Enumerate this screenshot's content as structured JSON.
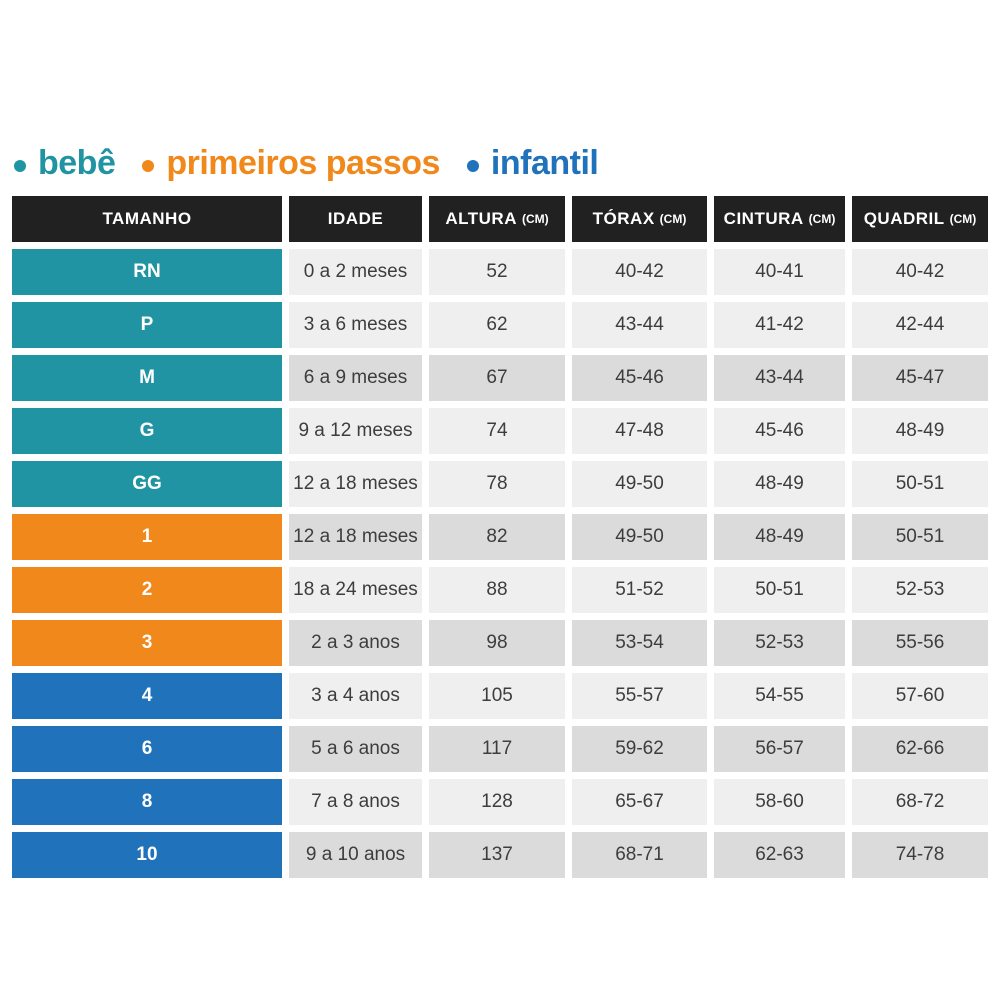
{
  "legend": {
    "items": [
      {
        "label": "bebê",
        "color": "#2194A3",
        "group": "bebe"
      },
      {
        "label": "primeiros passos",
        "color": "#F0881B",
        "group": "primeiros_passos"
      },
      {
        "label": "infantil",
        "color": "#2073BA",
        "group": "infantil"
      }
    ]
  },
  "colors": {
    "header_bg": "#212121",
    "header_text": "#FFFFFF",
    "cell_light": "#EFEFEF",
    "cell_dark": "#DBDBDB",
    "cell_text": "#3D3D3D",
    "size_text": "#FFFFFF",
    "group_bebe": "#2194A3",
    "group_primeiros_passos": "#F0881B",
    "group_infantil": "#2073BA",
    "page_bg": "#FFFFFF"
  },
  "table": {
    "headers": [
      {
        "label": "TAMANHO",
        "unit": ""
      },
      {
        "label": "IDADE",
        "unit": ""
      },
      {
        "label": "ALTURA",
        "unit": "(CM)"
      },
      {
        "label": "TÓRAX",
        "unit": "(CM)"
      },
      {
        "label": "CINTURA",
        "unit": "(CM)"
      },
      {
        "label": "QUADRIL",
        "unit": "(CM)"
      }
    ],
    "rows": [
      {
        "size": "RN",
        "group": "bebe",
        "shade": "light",
        "idade": "0 a 2 meses",
        "altura": "52",
        "torax": "40-42",
        "cintura": "40-41",
        "quadril": "40-42"
      },
      {
        "size": "P",
        "group": "bebe",
        "shade": "light",
        "idade": "3 a 6 meses",
        "altura": "62",
        "torax": "43-44",
        "cintura": "41-42",
        "quadril": "42-44"
      },
      {
        "size": "M",
        "group": "bebe",
        "shade": "dark",
        "idade": "6 a 9 meses",
        "altura": "67",
        "torax": "45-46",
        "cintura": "43-44",
        "quadril": "45-47"
      },
      {
        "size": "G",
        "group": "bebe",
        "shade": "light",
        "idade": "9 a 12 meses",
        "altura": "74",
        "torax": "47-48",
        "cintura": "45-46",
        "quadril": "48-49"
      },
      {
        "size": "GG",
        "group": "bebe",
        "shade": "light",
        "idade": "12 a 18 meses",
        "altura": "78",
        "torax": "49-50",
        "cintura": "48-49",
        "quadril": "50-51"
      },
      {
        "size": "1",
        "group": "primeiros_passos",
        "shade": "dark",
        "idade": "12 a 18 meses",
        "altura": "82",
        "torax": "49-50",
        "cintura": "48-49",
        "quadril": "50-51"
      },
      {
        "size": "2",
        "group": "primeiros_passos",
        "shade": "light",
        "idade": "18 a 24 meses",
        "altura": "88",
        "torax": "51-52",
        "cintura": "50-51",
        "quadril": "52-53"
      },
      {
        "size": "3",
        "group": "primeiros_passos",
        "shade": "dark",
        "idade": "2 a 3 anos",
        "altura": "98",
        "torax": "53-54",
        "cintura": "52-53",
        "quadril": "55-56"
      },
      {
        "size": "4",
        "group": "infantil",
        "shade": "light",
        "idade": "3 a 4 anos",
        "altura": "105",
        "torax": "55-57",
        "cintura": "54-55",
        "quadril": "57-60"
      },
      {
        "size": "6",
        "group": "infantil",
        "shade": "dark",
        "idade": "5 a 6 anos",
        "altura": "117",
        "torax": "59-62",
        "cintura": "56-57",
        "quadril": "62-66"
      },
      {
        "size": "8",
        "group": "infantil",
        "shade": "light",
        "idade": "7 a 8 anos",
        "altura": "128",
        "torax": "65-67",
        "cintura": "58-60",
        "quadril": "68-72"
      },
      {
        "size": "10",
        "group": "infantil",
        "shade": "dark",
        "idade": "9 a 10 anos",
        "altura": "137",
        "torax": "68-71",
        "cintura": "62-63",
        "quadril": "74-78"
      }
    ]
  },
  "chart_data": {
    "type": "table",
    "title": "",
    "legend_entries": [
      "bebê",
      "primeiros passos",
      "infantil"
    ],
    "columns": [
      "TAMANHO",
      "IDADE",
      "ALTURA (CM)",
      "TÓRAX (CM)",
      "CINTURA (CM)",
      "QUADRIL (CM)"
    ],
    "rows": [
      [
        "RN",
        "0 a 2 meses",
        "52",
        "40-42",
        "40-41",
        "40-42"
      ],
      [
        "P",
        "3 a 6 meses",
        "62",
        "43-44",
        "41-42",
        "42-44"
      ],
      [
        "M",
        "6 a 9 meses",
        "67",
        "45-46",
        "43-44",
        "45-47"
      ],
      [
        "G",
        "9 a 12 meses",
        "74",
        "47-48",
        "45-46",
        "48-49"
      ],
      [
        "GG",
        "12 a 18 meses",
        "78",
        "49-50",
        "48-49",
        "50-51"
      ],
      [
        "1",
        "12 a 18 meses",
        "82",
        "49-50",
        "48-49",
        "50-51"
      ],
      [
        "2",
        "18 a 24 meses",
        "88",
        "51-52",
        "50-51",
        "52-53"
      ],
      [
        "3",
        "2 a 3 anos",
        "98",
        "53-54",
        "52-53",
        "55-56"
      ],
      [
        "4",
        "3 a 4 anos",
        "105",
        "55-57",
        "54-55",
        "57-60"
      ],
      [
        "6",
        "5 a 6 anos",
        "117",
        "59-62",
        "56-57",
        "62-66"
      ],
      [
        "8",
        "7 a 8 anos",
        "128",
        "65-67",
        "58-60",
        "68-72"
      ],
      [
        "10",
        "9 a 10 anos",
        "137",
        "68-71",
        "62-63",
        "74-78"
      ]
    ]
  }
}
